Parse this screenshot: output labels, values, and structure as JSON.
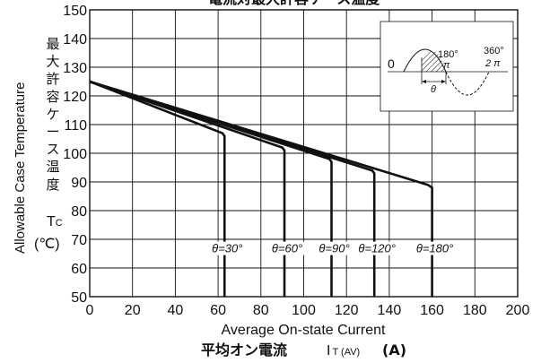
{
  "chart_data": {
    "type": "line",
    "title": "電流対最大許容ケース温度",
    "xlabel": "Average On-state Current",
    "xlabel_jp": "平均オン電流",
    "xlabel_symbol": "I",
    "xlabel_subscript": "T (AV)",
    "xlabel_unit": "(A)",
    "ylabel": "Allowable Case Temperature",
    "ylabel_jp_lines": [
      "最",
      "大",
      "許",
      "容",
      "ケ",
      "ー",
      "ス",
      "温",
      "度"
    ],
    "ylabel_symbol": "T",
    "ylabel_symbol_sub": "C",
    "ylabel_unit": "(℃)",
    "xlim": [
      0,
      200
    ],
    "ylim": [
      50,
      150
    ],
    "xticks": [
      "0",
      "20",
      "40",
      "60",
      "80",
      "100",
      "120",
      "140",
      "160",
      "180",
      "200"
    ],
    "yticks": [
      "50",
      "60",
      "70",
      "80",
      "90",
      "100",
      "110",
      "120",
      "130",
      "140",
      "150"
    ],
    "grid": true,
    "series": [
      {
        "name": "θ=30°",
        "x": [
          0,
          62,
          63,
          63
        ],
        "y": [
          125,
          107,
          106,
          50
        ]
      },
      {
        "name": "θ=60°",
        "x": [
          0,
          90,
          91,
          91
        ],
        "y": [
          125,
          102,
          101,
          50
        ]
      },
      {
        "name": "θ=90°",
        "x": [
          0,
          112,
          113,
          113
        ],
        "y": [
          125,
          98,
          97,
          50
        ]
      },
      {
        "name": "θ=120°",
        "x": [
          0,
          132,
          133,
          133
        ],
        "y": [
          125,
          94,
          93,
          50
        ]
      },
      {
        "name": "θ=180°",
        "x": [
          0,
          158,
          160,
          160
        ],
        "y": [
          125,
          89,
          88,
          50
        ]
      }
    ],
    "inset": {
      "label_zero": "0",
      "label_180": "180°",
      "label_pi": "π",
      "label_360": "360°",
      "label_2pi": "2 π",
      "label_theta": "θ"
    }
  }
}
